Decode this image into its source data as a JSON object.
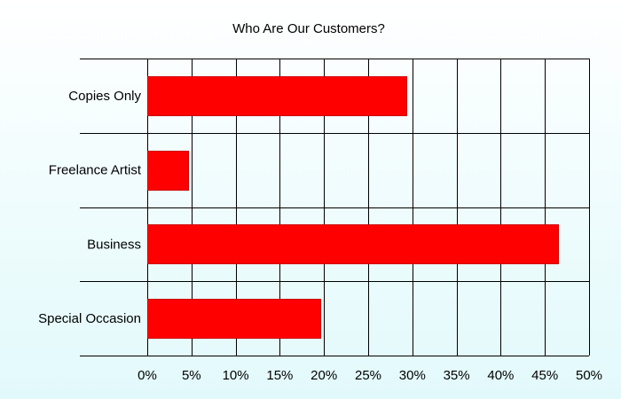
{
  "chart_data": {
    "type": "bar",
    "orientation": "horizontal",
    "title": "Who Are Our Customers?",
    "categories": [
      "Copies Only",
      "Freelance Artist",
      "Business",
      "Special Occasion"
    ],
    "values": [
      29.3,
      4.6,
      46.5,
      19.6
    ],
    "unit": "%",
    "xlim": [
      0,
      50
    ],
    "x_ticks": [
      "0%",
      "5%",
      "10%",
      "15%",
      "20%",
      "25%",
      "30%",
      "35%",
      "40%",
      "45%",
      "50%"
    ],
    "grid": true,
    "bar_color": "#ff0000"
  }
}
